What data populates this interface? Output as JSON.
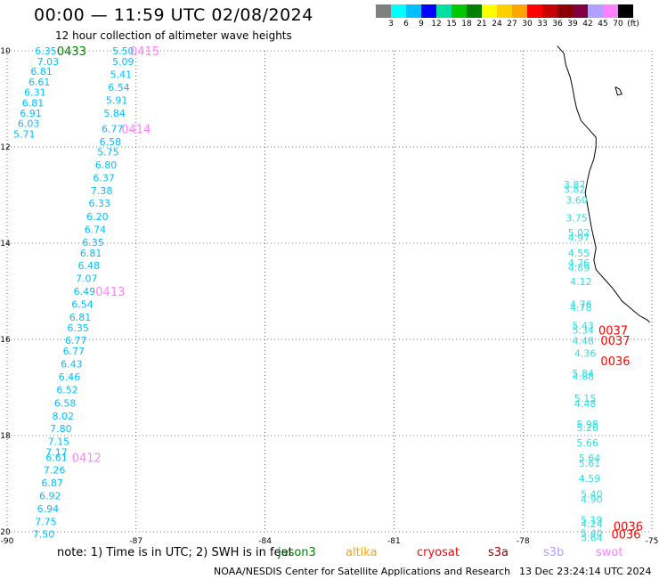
{
  "header": {
    "title": "00:00 — 11:59 UTC 02/08/2024",
    "subtitle": "12 hour collection of altimeter wave heights"
  },
  "colorbar": {
    "colors": [
      "#808080",
      "#00ffff",
      "#00bfff",
      "#0000ff",
      "#00e0a0",
      "#00c800",
      "#008000",
      "#ffff00",
      "#ffd000",
      "#ffa500",
      "#ff0000",
      "#c80000",
      "#8b0000",
      "#800040",
      "#b0a0ff",
      "#ff80ff",
      "#000000"
    ],
    "labels": [
      "3",
      "6",
      "9",
      "12",
      "15",
      "18",
      "21",
      "24",
      "27",
      "30",
      "33",
      "36",
      "39",
      "42",
      "45",
      "70",
      "(ft)"
    ]
  },
  "map": {
    "lon_ticks": [
      "-90",
      "-87",
      "-84",
      "-81",
      "-78",
      "-75"
    ],
    "lat_ticks": [
      "10",
      "12",
      "14",
      "16",
      "18",
      "20"
    ],
    "colors": {
      "swh": "#00bfff",
      "swh_east": "#2ee0e0",
      "time_west": "#ff80ff",
      "time_green": "#008000",
      "time_red": "#ff0000"
    },
    "west_track_values": [
      {
        "lon": -89.1,
        "lat": 10.0,
        "v": "6.35"
      },
      {
        "lon": -89.05,
        "lat": 10.22,
        "v": "7.03"
      },
      {
        "lon": -89.2,
        "lat": 10.43,
        "v": "6.81"
      },
      {
        "lon": -89.25,
        "lat": 10.65,
        "v": "6.61"
      },
      {
        "lon": -89.35,
        "lat": 10.86,
        "v": "6.31"
      },
      {
        "lon": -89.4,
        "lat": 11.08,
        "v": "6.81"
      },
      {
        "lon": -89.45,
        "lat": 11.3,
        "v": "6.91"
      },
      {
        "lon": -89.5,
        "lat": 11.51,
        "v": "6.03"
      },
      {
        "lon": -89.6,
        "lat": 11.73,
        "v": "5.71"
      },
      {
        "lon": -87.3,
        "lat": 10.0,
        "v": "5.50"
      },
      {
        "lon": -87.3,
        "lat": 10.22,
        "v": "5.09"
      },
      {
        "lon": -87.35,
        "lat": 10.49,
        "v": "5.41"
      },
      {
        "lon": -87.4,
        "lat": 10.76,
        "v": "6.54"
      },
      {
        "lon": -87.45,
        "lat": 11.03,
        "v": "5.91"
      },
      {
        "lon": -87.5,
        "lat": 11.3,
        "v": "5.84"
      },
      {
        "lon": -87.55,
        "lat": 11.62,
        "v": "6.77"
      },
      {
        "lon": -87.6,
        "lat": 11.89,
        "v": "6.58"
      },
      {
        "lon": -87.65,
        "lat": 12.1,
        "v": "5.75"
      },
      {
        "lon": -87.7,
        "lat": 12.37,
        "v": "6.80"
      },
      {
        "lon": -87.75,
        "lat": 12.64,
        "v": "6.37"
      },
      {
        "lon": -87.8,
        "lat": 12.91,
        "v": "7.38"
      },
      {
        "lon": -87.85,
        "lat": 13.17,
        "v": "6.33"
      },
      {
        "lon": -87.9,
        "lat": 13.44,
        "v": "6.20"
      },
      {
        "lon": -87.95,
        "lat": 13.71,
        "v": "6.74"
      },
      {
        "lon": -88.0,
        "lat": 13.98,
        "v": "6.35"
      },
      {
        "lon": -88.05,
        "lat": 14.2,
        "v": "6.81"
      },
      {
        "lon": -88.1,
        "lat": 14.46,
        "v": "6.48"
      },
      {
        "lon": -88.15,
        "lat": 14.73,
        "v": "7.07"
      },
      {
        "lon": -88.2,
        "lat": 15.0,
        "v": "6.49"
      },
      {
        "lon": -88.25,
        "lat": 15.27,
        "v": "6.54"
      },
      {
        "lon": -88.3,
        "lat": 15.54,
        "v": "6.81"
      },
      {
        "lon": -88.35,
        "lat": 15.76,
        "v": "6.35"
      },
      {
        "lon": -88.4,
        "lat": 16.02,
        "v": "6.77"
      },
      {
        "lon": -88.45,
        "lat": 16.24,
        "v": "6.77"
      },
      {
        "lon": -88.5,
        "lat": 16.51,
        "v": "6.43"
      },
      {
        "lon": -88.55,
        "lat": 16.78,
        "v": "6.46"
      },
      {
        "lon": -88.6,
        "lat": 17.05,
        "v": "6.52"
      },
      {
        "lon": -88.65,
        "lat": 17.32,
        "v": "6.58"
      },
      {
        "lon": -88.7,
        "lat": 17.59,
        "v": "8.02"
      },
      {
        "lon": -88.75,
        "lat": 17.85,
        "v": "7.80"
      },
      {
        "lon": -88.8,
        "lat": 18.12,
        "v": "7.15"
      },
      {
        "lon": -88.85,
        "lat": 18.34,
        "v": "7.17"
      },
      {
        "lon": -88.85,
        "lat": 18.45,
        "v": "6.61"
      },
      {
        "lon": -88.9,
        "lat": 18.71,
        "v": "7.26"
      },
      {
        "lon": -88.95,
        "lat": 18.98,
        "v": "6.87"
      },
      {
        "lon": -89.0,
        "lat": 19.25,
        "v": "6.92"
      },
      {
        "lon": -89.05,
        "lat": 19.52,
        "v": "6.94"
      },
      {
        "lon": -89.1,
        "lat": 19.79,
        "v": "7.75"
      },
      {
        "lon": -89.15,
        "lat": 20.05,
        "v": "7.50"
      }
    ],
    "east_track_values": [
      {
        "lon": -76.8,
        "lat": 12.78,
        "v": "3.87"
      },
      {
        "lon": -76.8,
        "lat": 12.88,
        "v": "3.82"
      },
      {
        "lon": -76.75,
        "lat": 13.1,
        "v": "3.60"
      },
      {
        "lon": -76.75,
        "lat": 13.47,
        "v": "3.75"
      },
      {
        "lon": -76.7,
        "lat": 13.78,
        "v": "5.02"
      },
      {
        "lon": -76.7,
        "lat": 13.88,
        "v": "4.97"
      },
      {
        "lon": -76.7,
        "lat": 14.2,
        "v": "4.55"
      },
      {
        "lon": -76.7,
        "lat": 14.41,
        "v": "4.76"
      },
      {
        "lon": -76.7,
        "lat": 14.51,
        "v": "4.89"
      },
      {
        "lon": -76.65,
        "lat": 14.8,
        "v": "4.12"
      },
      {
        "lon": -76.65,
        "lat": 15.27,
        "v": "4.76"
      },
      {
        "lon": -76.65,
        "lat": 15.33,
        "v": "4.78"
      },
      {
        "lon": -76.6,
        "lat": 15.71,
        "v": "5.43"
      },
      {
        "lon": -76.6,
        "lat": 15.81,
        "v": "5.34"
      },
      {
        "lon": -76.6,
        "lat": 16.03,
        "v": "4.48"
      },
      {
        "lon": -76.55,
        "lat": 16.29,
        "v": "4.36"
      },
      {
        "lon": -76.6,
        "lat": 16.7,
        "v": "5.84"
      },
      {
        "lon": -76.6,
        "lat": 16.77,
        "v": "4.88"
      },
      {
        "lon": -76.55,
        "lat": 17.22,
        "v": "5.15"
      },
      {
        "lon": -76.55,
        "lat": 17.33,
        "v": "4.48"
      },
      {
        "lon": -76.5,
        "lat": 17.76,
        "v": "5.98"
      },
      {
        "lon": -76.5,
        "lat": 17.83,
        "v": "5.26"
      },
      {
        "lon": -76.5,
        "lat": 18.15,
        "v": "5.66"
      },
      {
        "lon": -76.45,
        "lat": 18.46,
        "v": "5.64"
      },
      {
        "lon": -76.45,
        "lat": 18.57,
        "v": "5.61"
      },
      {
        "lon": -76.45,
        "lat": 18.89,
        "v": "4.59"
      },
      {
        "lon": -76.4,
        "lat": 19.21,
        "v": "5.40"
      },
      {
        "lon": -76.4,
        "lat": 19.32,
        "v": "4.90"
      },
      {
        "lon": -76.4,
        "lat": 19.75,
        "v": "5.19"
      },
      {
        "lon": -76.4,
        "lat": 19.83,
        "v": "4.24"
      },
      {
        "lon": -76.4,
        "lat": 20.03,
        "v": "5.40"
      },
      {
        "lon": -76.4,
        "lat": 20.12,
        "v": "5.64"
      }
    ],
    "time_labels": [
      {
        "lon": -88.5,
        "lat": 10.0,
        "v": "0433",
        "c": "time_green"
      },
      {
        "lon": -86.8,
        "lat": 10.0,
        "v": "0415",
        "c": "time_west"
      },
      {
        "lon": -87.0,
        "lat": 11.62,
        "v": "0414",
        "c": "time_west"
      },
      {
        "lon": -87.6,
        "lat": 15.0,
        "v": "0413",
        "c": "time_west"
      },
      {
        "lon": -88.15,
        "lat": 18.45,
        "v": "0412",
        "c": "time_west"
      },
      {
        "lon": -75.9,
        "lat": 15.81,
        "v": "0037",
        "c": "time_red"
      },
      {
        "lon": -75.85,
        "lat": 16.02,
        "v": "0037",
        "c": "time_red"
      },
      {
        "lon": -75.85,
        "lat": 16.44,
        "v": "0036",
        "c": "time_red"
      },
      {
        "lon": -75.55,
        "lat": 19.88,
        "v": "0036",
        "c": "time_red"
      },
      {
        "lon": -75.6,
        "lat": 20.05,
        "v": "0036",
        "c": "time_red"
      }
    ],
    "coastline": [
      [
        -77.2,
        9.9
      ],
      [
        -77.05,
        10.05
      ],
      [
        -77.0,
        10.3
      ],
      [
        -76.9,
        10.55
      ],
      [
        -76.85,
        10.75
      ],
      [
        -76.8,
        11.0
      ],
      [
        -76.75,
        11.2
      ],
      [
        -76.65,
        11.45
      ],
      [
        -76.45,
        11.65
      ],
      [
        -76.3,
        11.8
      ],
      [
        -76.3,
        12.0
      ],
      [
        -76.35,
        12.25
      ],
      [
        -76.45,
        12.5
      ],
      [
        -76.5,
        12.7
      ],
      [
        -76.55,
        12.95
      ],
      [
        -76.5,
        13.2
      ],
      [
        -76.45,
        13.45
      ],
      [
        -76.4,
        13.7
      ],
      [
        -76.35,
        13.9
      ],
      [
        -76.3,
        14.1
      ],
      [
        -76.35,
        14.35
      ],
      [
        -76.3,
        14.55
      ],
      [
        -76.1,
        14.75
      ],
      [
        -75.9,
        14.95
      ],
      [
        -75.7,
        15.2
      ],
      [
        -75.5,
        15.35
      ],
      [
        -75.3,
        15.5
      ],
      [
        -75.1,
        15.6
      ],
      [
        -75.05,
        15.65
      ]
    ],
    "island": [
      [
        -75.85,
        10.75
      ],
      [
        -75.75,
        10.8
      ],
      [
        -75.7,
        10.9
      ],
      [
        -75.8,
        10.92
      ],
      [
        -75.85,
        10.75
      ]
    ]
  },
  "footer": {
    "note": "note: 1) Time is in UTC; 2) SWH is in feet",
    "satellites": [
      {
        "name": "jason3",
        "color": "#008000"
      },
      {
        "name": "altika",
        "color": "#ffa500"
      },
      {
        "name": "cryosat",
        "color": "#ff0000"
      },
      {
        "name": "s3a",
        "color": "#8b0000"
      },
      {
        "name": "s3b",
        "color": "#b0a0ff"
      },
      {
        "name": "swot",
        "color": "#ff80ff"
      }
    ],
    "credit": "NOAA/NESDIS Center for Satellite Applications and Research",
    "timestamp": "13 Dec 23:24:14 UTC 2024"
  }
}
